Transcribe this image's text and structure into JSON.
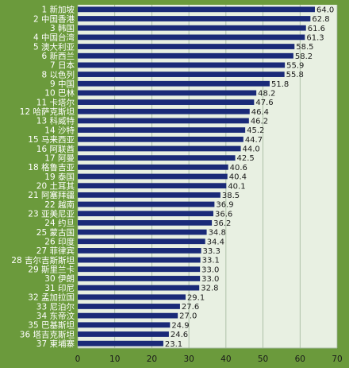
{
  "chart_data": {
    "type": "bar",
    "orientation": "horizontal",
    "title": "",
    "xlabel": "",
    "ylabel": "",
    "xlim": [
      0,
      70
    ],
    "xticks": [
      0,
      10,
      20,
      30,
      40,
      50,
      60,
      70
    ],
    "grid": true,
    "categories": [
      "1 新加坡",
      "2 中国香港",
      "3 韩国",
      "4 中国台湾",
      "5 澳大利亚",
      "6 新西兰",
      "7 日本",
      "8 以色列",
      "9 中国",
      "10 巴林",
      "11 卡塔尔",
      "12 哈萨克斯坦",
      "13 科威特",
      "14 沙特",
      "15 马来西亚",
      "16 阿联酋",
      "17 阿曼",
      "18 格鲁吉亚",
      "19 泰国",
      "20 土耳其",
      "21 阿塞拜疆",
      "22 越南",
      "23 亚美尼亚",
      "24 约旦",
      "25 蒙古国",
      "26 印度",
      "27 菲律宾",
      "28 吉尔吉斯斯坦",
      "29 斯里兰卡",
      "30 伊朗",
      "31 印尼",
      "32 孟加拉国",
      "33 尼泊尔",
      "34 东帝汶",
      "35 巴基斯坦",
      "36 塔吉克斯坦",
      "37 柬埔寨"
    ],
    "values": [
      64.0,
      62.8,
      61.6,
      61.3,
      58.5,
      58.2,
      55.9,
      55.8,
      51.8,
      48.2,
      47.6,
      46.4,
      46.2,
      45.2,
      44.7,
      44.0,
      42.5,
      40.6,
      40.4,
      40.1,
      38.5,
      36.9,
      36.6,
      36.2,
      34.8,
      34.4,
      33.3,
      33.1,
      33.0,
      33.0,
      32.8,
      29.1,
      27.6,
      27.0,
      24.9,
      24.6,
      23.1
    ],
    "value_labels": [
      "64.0",
      "62.8",
      "61.6",
      "61.3",
      "58.5",
      "58.2",
      "55.9",
      "55.8",
      "51.8",
      "48.2",
      "47.6",
      "46.4",
      "46.2",
      "45.2",
      "44.7",
      "44.0",
      "42.5",
      "40.6",
      "40.4",
      "40.1",
      "38.5",
      "36.9",
      "36.6",
      "36.2",
      "34.8",
      "34.4",
      "33.3",
      "33.1",
      "33.0",
      "33.0",
      "32.8",
      "29.1",
      "27.6",
      "27.0",
      "24.9",
      "24.6",
      "23.1"
    ],
    "colors": {
      "background": "#6b9a3c",
      "plot_area": "#e8f0e2",
      "bar": "#1a2a78",
      "grid": "#9fb59a",
      "category_text": "#ffffff",
      "value_text": "#1a1a1a"
    }
  }
}
